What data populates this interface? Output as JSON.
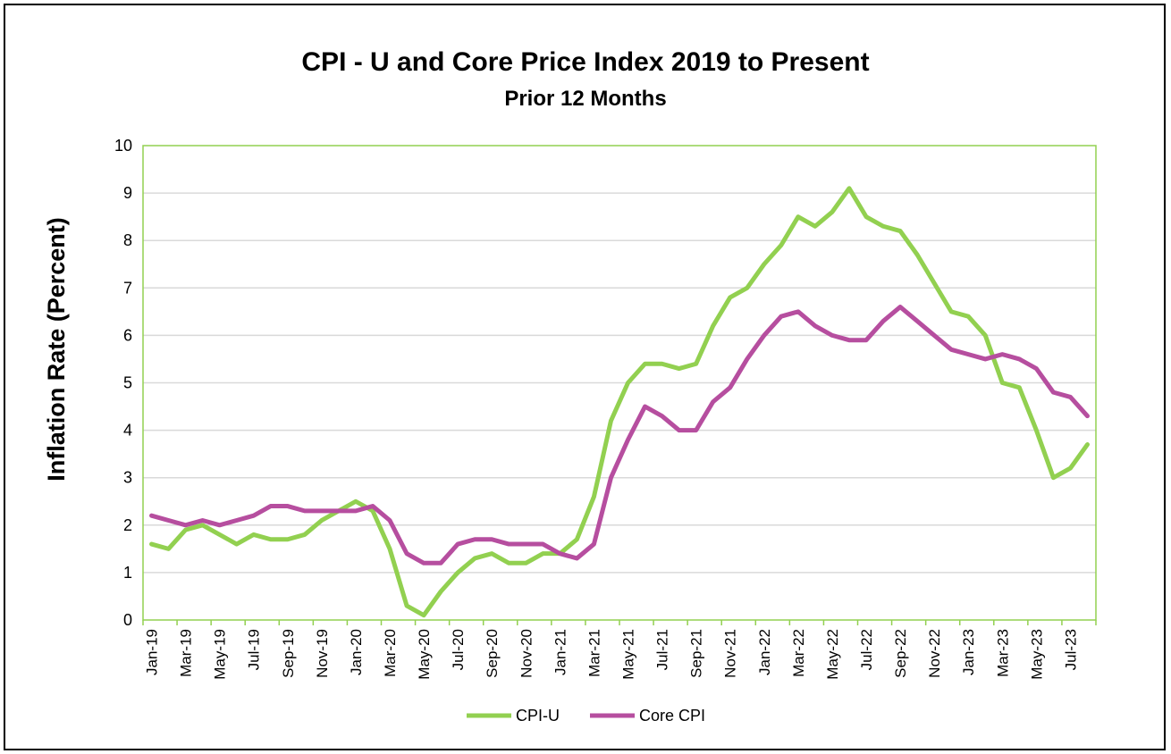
{
  "chart_data": {
    "type": "line",
    "title": "CPI - U and Core Price Index 2019 to Present",
    "subtitle": "Prior 12 Months",
    "xlabel": "",
    "ylabel": "Inflation Rate (Percent)",
    "ylim": [
      0,
      10
    ],
    "yticks": [
      0,
      1,
      2,
      3,
      4,
      5,
      6,
      7,
      8,
      9,
      10
    ],
    "grid": true,
    "legend_position": "bottom",
    "categories": [
      "Jan-19",
      "Feb-19",
      "Mar-19",
      "Apr-19",
      "May-19",
      "Jun-19",
      "Jul-19",
      "Aug-19",
      "Sep-19",
      "Oct-19",
      "Nov-19",
      "Dec-19",
      "Jan-20",
      "Feb-20",
      "Mar-20",
      "Apr-20",
      "May-20",
      "Jun-20",
      "Jul-20",
      "Aug-20",
      "Sep-20",
      "Oct-20",
      "Nov-20",
      "Dec-20",
      "Jan-21",
      "Feb-21",
      "Mar-21",
      "Apr-21",
      "May-21",
      "Jun-21",
      "Jul-21",
      "Aug-21",
      "Sep-21",
      "Oct-21",
      "Nov-21",
      "Dec-21",
      "Jan-22",
      "Feb-22",
      "Mar-22",
      "Apr-22",
      "May-22",
      "Jun-22",
      "Jul-22",
      "Aug-22",
      "Sep-22",
      "Oct-22",
      "Nov-22",
      "Dec-22",
      "Jan-23",
      "Feb-23",
      "Mar-23",
      "Apr-23",
      "May-23",
      "Jun-23",
      "Jul-23",
      "Aug-23"
    ],
    "xtick_labels": [
      "Jan-19",
      "Mar-19",
      "May-19",
      "Jul-19",
      "Sep-19",
      "Nov-19",
      "Jan-20",
      "Mar-20",
      "May-20",
      "Jul-20",
      "Sep-20",
      "Nov-20",
      "Jan-21",
      "Mar-21",
      "May-21",
      "Jul-21",
      "Sep-21",
      "Nov-21",
      "Jan-22",
      "Mar-22",
      "May-22",
      "Jul-22",
      "Sep-22",
      "Nov-22",
      "Jan-23",
      "Mar-23",
      "May-23",
      "Jul-23"
    ],
    "series": [
      {
        "name": "CPI-U",
        "color": "#92D050",
        "values": [
          1.6,
          1.5,
          1.9,
          2.0,
          1.8,
          1.6,
          1.8,
          1.7,
          1.7,
          1.8,
          2.1,
          2.3,
          2.5,
          2.3,
          1.5,
          0.3,
          0.1,
          0.6,
          1.0,
          1.3,
          1.4,
          1.2,
          1.2,
          1.4,
          1.4,
          1.7,
          2.6,
          4.2,
          5.0,
          5.4,
          5.4,
          5.3,
          5.4,
          6.2,
          6.8,
          7.0,
          7.5,
          7.9,
          8.5,
          8.3,
          8.6,
          9.1,
          8.5,
          8.3,
          8.2,
          7.7,
          7.1,
          6.5,
          6.4,
          6.0,
          5.0,
          4.9,
          4.0,
          3.0,
          3.2,
          3.7
        ]
      },
      {
        "name": "Core CPI",
        "color": "#B64E9F",
        "values": [
          2.2,
          2.1,
          2.0,
          2.1,
          2.0,
          2.1,
          2.2,
          2.4,
          2.4,
          2.3,
          2.3,
          2.3,
          2.3,
          2.4,
          2.1,
          1.4,
          1.2,
          1.2,
          1.6,
          1.7,
          1.7,
          1.6,
          1.6,
          1.6,
          1.4,
          1.3,
          1.6,
          3.0,
          3.8,
          4.5,
          4.3,
          4.0,
          4.0,
          4.6,
          4.9,
          5.5,
          6.0,
          6.4,
          6.5,
          6.2,
          6.0,
          5.9,
          5.9,
          6.3,
          6.6,
          6.3,
          6.0,
          5.7,
          5.6,
          5.5,
          5.6,
          5.5,
          5.3,
          4.8,
          4.7,
          4.3
        ]
      }
    ]
  },
  "colors": {
    "plot_border": "#92D050",
    "gridline": "#D9D9D9",
    "frame": "#000000"
  }
}
